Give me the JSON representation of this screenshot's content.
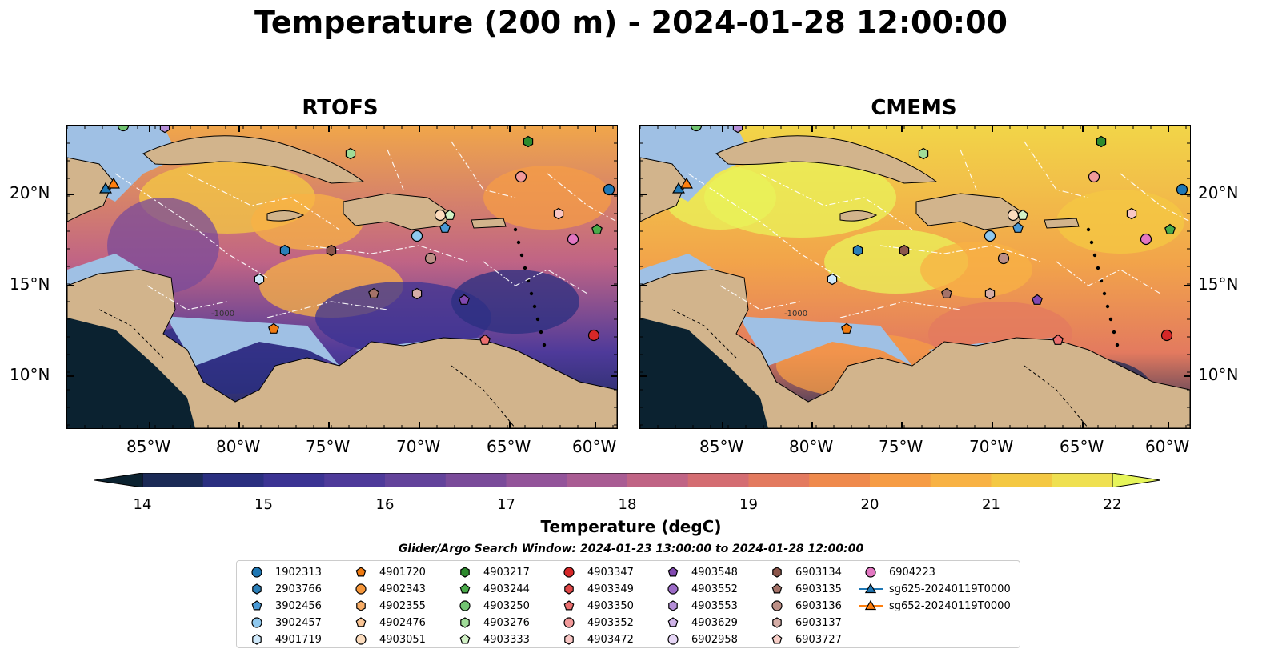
{
  "title": "Temperature (200 m) - 2024-01-28 12:00:00",
  "panels": [
    {
      "title": "RTOFS"
    },
    {
      "title": "CMEMS"
    }
  ],
  "lon_labels": [
    "85°W",
    "80°W",
    "75°W",
    "70°W",
    "65°W",
    "60°W"
  ],
  "lat_labels": [
    "20°N",
    "15°N",
    "10°N"
  ],
  "colorbar": {
    "label": "Temperature (degC)",
    "ticks": [
      "14",
      "15",
      "16",
      "17",
      "18",
      "19",
      "20",
      "21",
      "22"
    ],
    "colors": [
      "#0b2230",
      "#1b2a56",
      "#2a2f80",
      "#3b3393",
      "#4e3a9a",
      "#63439b",
      "#7a4b9a",
      "#93549a",
      "#a95c93",
      "#c06485",
      "#d46d72",
      "#e37a5f",
      "#ef8a4d",
      "#f69c45",
      "#f8b244",
      "#f4c843",
      "#efe051",
      "#e6f55a"
    ]
  },
  "contour_label": "-1000",
  "search_window": "Glider/Argo Search Window: 2024-01-23 13:00:00 to 2024-01-28 12:00:00",
  "legend": [
    {
      "label": "1902313",
      "marker": "circle",
      "color": "#1f77b4"
    },
    {
      "label": "2903766",
      "marker": "hexagon",
      "color": "#2b7fb8"
    },
    {
      "label": "3902456",
      "marker": "pentagon",
      "color": "#4a9ad6"
    },
    {
      "label": "3902457",
      "marker": "circle",
      "color": "#8fc8ee"
    },
    {
      "label": "4901719",
      "marker": "hexagon",
      "color": "#cfe9fb"
    },
    {
      "label": "4901720",
      "marker": "pentagon",
      "color": "#f07a10"
    },
    {
      "label": "4902343",
      "marker": "circle",
      "color": "#f5963a"
    },
    {
      "label": "4902355",
      "marker": "hexagon",
      "color": "#f8ad66"
    },
    {
      "label": "4902476",
      "marker": "pentagon",
      "color": "#fac595"
    },
    {
      "label": "4903051",
      "marker": "circle",
      "color": "#fcdcbd"
    },
    {
      "label": "4903217",
      "marker": "hexagon",
      "color": "#2e8b2e"
    },
    {
      "label": "4903244",
      "marker": "pentagon",
      "color": "#4aab4a"
    },
    {
      "label": "4903250",
      "marker": "circle",
      "color": "#72c472"
    },
    {
      "label": "4903276",
      "marker": "hexagon",
      "color": "#a0dc98"
    },
    {
      "label": "4903333",
      "marker": "pentagon",
      "color": "#d2f2c6"
    },
    {
      "label": "4903347",
      "marker": "circle",
      "color": "#d62728"
    },
    {
      "label": "4903349",
      "marker": "hexagon",
      "color": "#e04848"
    },
    {
      "label": "4903350",
      "marker": "pentagon",
      "color": "#eb6f6f"
    },
    {
      "label": "4903352",
      "marker": "circle",
      "color": "#f29a9a"
    },
    {
      "label": "4903472",
      "marker": "hexagon",
      "color": "#f8c6c4"
    },
    {
      "label": "4903548",
      "marker": "pentagon",
      "color": "#8148b0"
    },
    {
      "label": "4903552",
      "marker": "circle",
      "color": "#9b6ac6"
    },
    {
      "label": "4903553",
      "marker": "hexagon",
      "color": "#b58fd8"
    },
    {
      "label": "4903629",
      "marker": "pentagon",
      "color": "#cfb3e8"
    },
    {
      "label": "6902958",
      "marker": "circle",
      "color": "#e6d6f6"
    },
    {
      "label": "6903134",
      "marker": "hexagon",
      "color": "#8c564b"
    },
    {
      "label": "6903135",
      "marker": "pentagon",
      "color": "#a47268"
    },
    {
      "label": "6903136",
      "marker": "circle",
      "color": "#bc8f86"
    },
    {
      "label": "6903137",
      "marker": "hexagon",
      "color": "#d5ada6"
    },
    {
      "label": "6903727",
      "marker": "pentagon",
      "color": "#f7cdc6"
    },
    {
      "label": "6904223",
      "marker": "circle",
      "color": "#e377c2"
    },
    {
      "label": "sg625-20240119T0000",
      "marker": "triangle-line",
      "color": "#1f77b4"
    },
    {
      "label": "sg652-20240119T0000",
      "marker": "triangle-line",
      "color": "#ff7f0e"
    }
  ]
}
